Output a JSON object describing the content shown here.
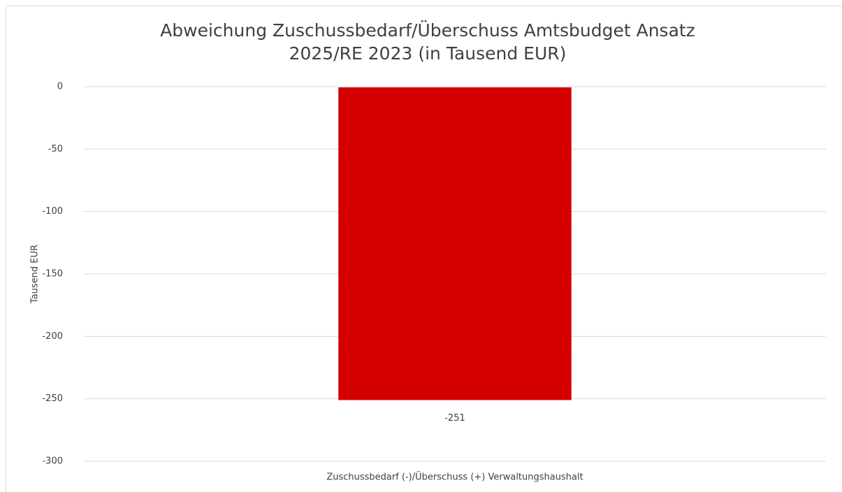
{
  "chart_data": {
    "type": "bar",
    "title": [
      "Abweichung Zuschussbedarf/Überschuss Amtsbudget  Ansatz",
      "2025/RE 2023 (in Tausend EUR)"
    ],
    "y_label": "Tausend EUR",
    "categories": [
      "Zuschussbedarf (-)/Überschuss (+) Verwaltungshaushalt"
    ],
    "values": [
      -251
    ],
    "color": "#d40000",
    "ylim": [
      -300,
      0
    ],
    "yticks": [
      0,
      -50,
      -100,
      -150,
      -200,
      -250,
      -300
    ],
    "grid": true
  }
}
